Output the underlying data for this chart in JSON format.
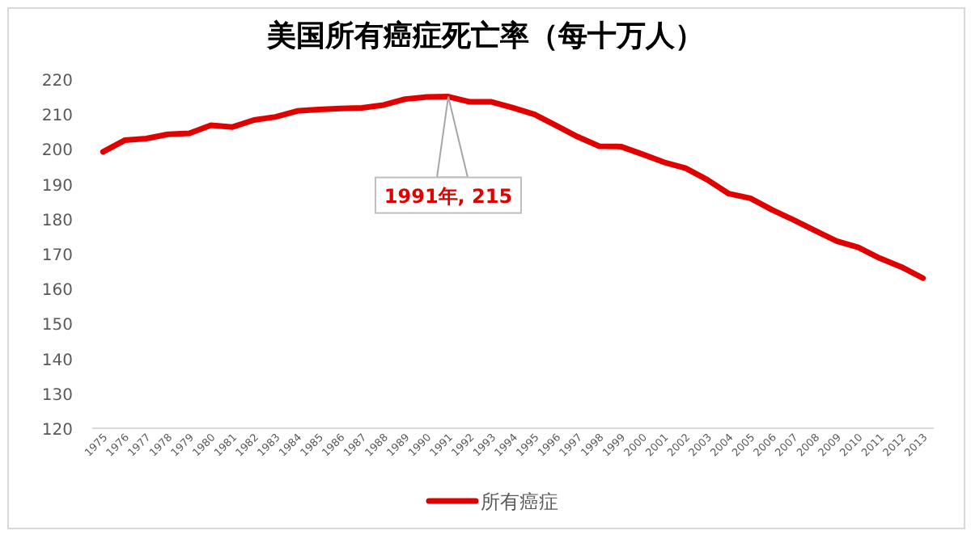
{
  "chart_data": {
    "type": "line",
    "title": "美国所有癌症死亡率（每十万人）",
    "categories": [
      "1975",
      "1976",
      "1977",
      "1978",
      "1979",
      "1980",
      "1981",
      "1982",
      "1983",
      "1984",
      "1985",
      "1986",
      "1987",
      "1988",
      "1989",
      "1990",
      "1991",
      "1992",
      "1993",
      "1994",
      "1995",
      "1996",
      "1997",
      "1998",
      "1999",
      "2000",
      "2001",
      "2002",
      "2003",
      "2004",
      "2005",
      "2006",
      "2007",
      "2008",
      "2009",
      "2010",
      "2011",
      "2012",
      "2013"
    ],
    "series": [
      {
        "name": "所有癌症",
        "color": "#e00000",
        "values": [
          199.2,
          202.5,
          203,
          204.2,
          204.5,
          206.8,
          206.3,
          208.3,
          209.2,
          210.9,
          211.3,
          211.6,
          211.8,
          212.6,
          214.3,
          214.9,
          215,
          213.5,
          213.5,
          211.8,
          209.9,
          206.7,
          203.5,
          200.8,
          200.7,
          198.5,
          196.2,
          194.5,
          191.2,
          187.2,
          185.9,
          182.6,
          179.7,
          176.6,
          173.6,
          171.8,
          168.7,
          166.2,
          163
        ]
      }
    ],
    "ylim": [
      120,
      220
    ],
    "yticks": [
      120,
      130,
      140,
      150,
      160,
      170,
      180,
      190,
      200,
      210,
      220
    ],
    "annotations": [
      "1991年, 215"
    ],
    "legend": "bottom",
    "marker": "none",
    "line_style": "solid"
  }
}
